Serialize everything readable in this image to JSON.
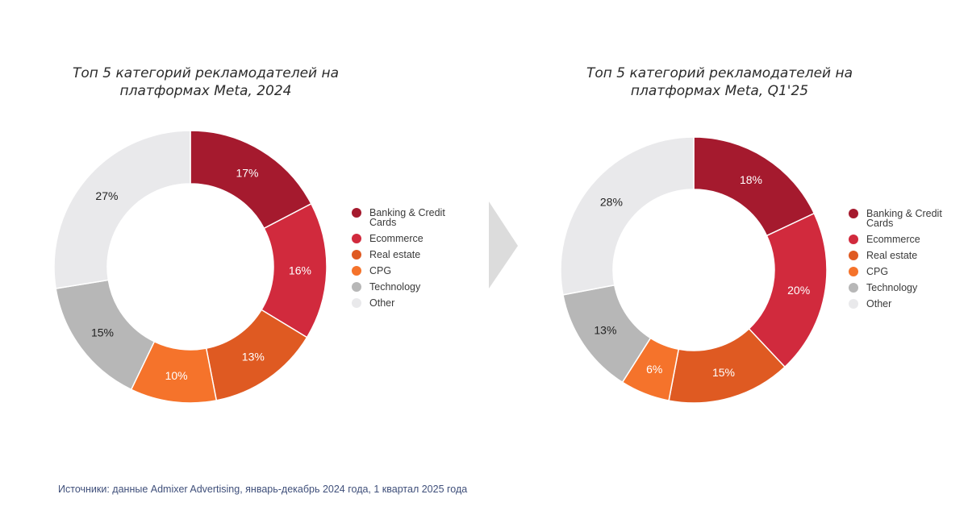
{
  "colors": {
    "Banking & Credit Cards": "#a51a2e",
    "Ecommerce": "#d12a3d",
    "Real estate": "#df5a22",
    "CPG": "#f5732b",
    "Technology": "#b7b7b7",
    "Other": "#e9e9eb"
  },
  "label_colors": {
    "Banking & Credit Cards": "#ffffff",
    "Ecommerce": "#ffffff",
    "Real estate": "#ffffff",
    "CPG": "#ffffff",
    "Technology": "#222222",
    "Other": "#222222"
  },
  "legend": [
    "Banking & Credit Cards",
    "Ecommerce",
    "Real estate",
    "CPG",
    "Technology",
    "Other"
  ],
  "chart_data": [
    {
      "type": "pie",
      "donut": true,
      "title_lines": [
        "Топ 5 категорий рекламодателей на",
        "платформах Meta, 2024"
      ],
      "categories": [
        "Banking & Credit Cards",
        "Ecommerce",
        "Real estate",
        "CPG",
        "Technology",
        "Other"
      ],
      "values": [
        17,
        16,
        13,
        10,
        15,
        27
      ],
      "labels": [
        "17%",
        "16%",
        "13%",
        "10%",
        "15%",
        "27%"
      ],
      "legend_position": "right"
    },
    {
      "type": "pie",
      "donut": true,
      "title_lines": [
        "Топ 5 категорий рекламодателей на",
        "платформах Meta, Q1'25"
      ],
      "categories": [
        "Banking & Credit Cards",
        "Ecommerce",
        "Real estate",
        "CPG",
        "Technology",
        "Other"
      ],
      "values": [
        18,
        20,
        15,
        6,
        13,
        28
      ],
      "labels": [
        "18%",
        "20%",
        "15%",
        "6%",
        "13%",
        "28%"
      ],
      "legend_position": "right"
    }
  ],
  "source": "Источники: данные Admixer Advertising, январь-декабрь 2024 года, 1 квартал 2025 года"
}
